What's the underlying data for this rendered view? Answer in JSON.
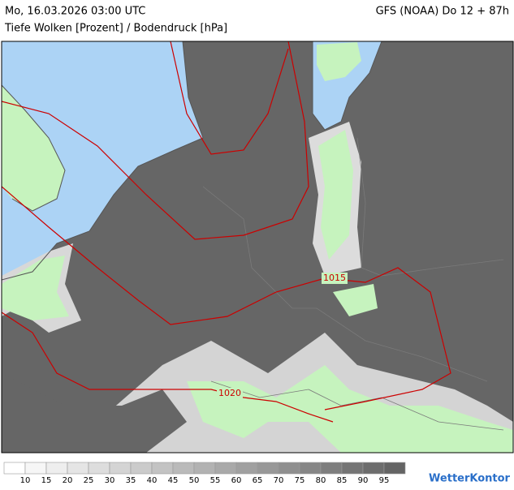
{
  "header": {
    "datetime": "Mo, 16.03.2026 03:00 UTC",
    "model": "GFS (NOAA) Do 12 + 87h",
    "subtitle": "Tiefe Wolken [Prozent] / Bodendruck [hPa]"
  },
  "map": {
    "isobar_labels": [
      "1015",
      "1020"
    ]
  },
  "legend": {
    "labels": [
      10,
      15,
      20,
      25,
      30,
      35,
      40,
      45,
      50,
      55,
      60,
      65,
      70,
      75,
      80,
      85,
      90,
      95
    ]
  },
  "logo": "WetterKontor"
}
